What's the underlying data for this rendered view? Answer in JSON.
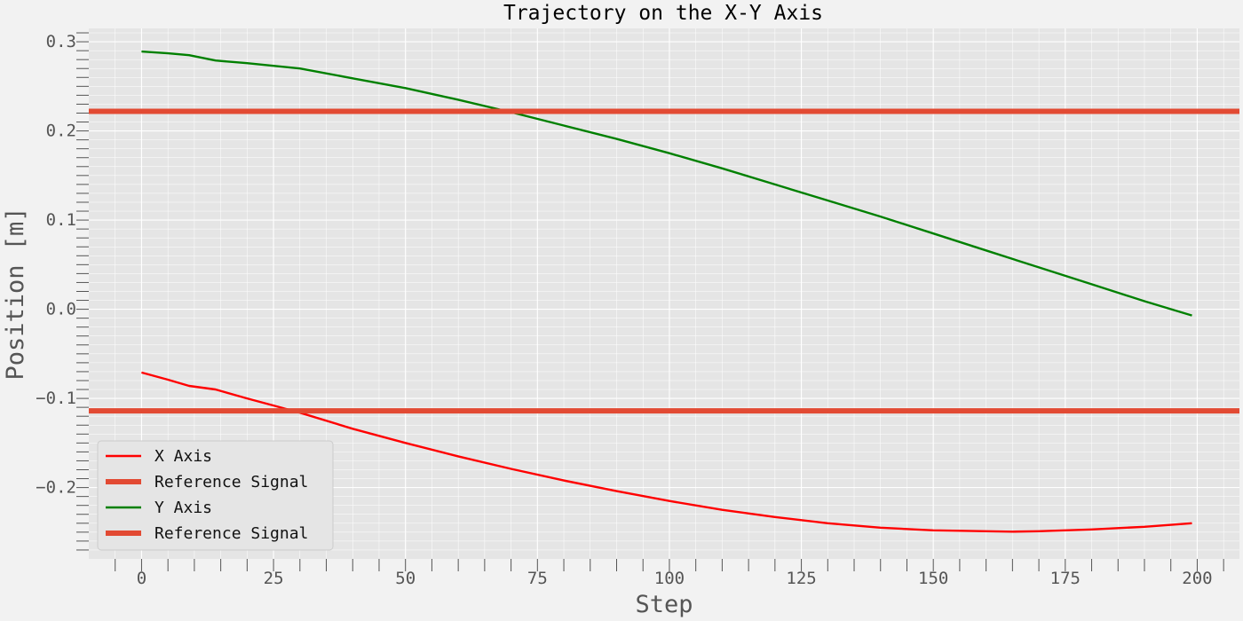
{
  "chart_data": {
    "type": "line",
    "title": "Trajectory on the X-Y Axis",
    "xlabel": "Step",
    "ylabel": "Position [m]",
    "xlim": [
      -10,
      208
    ],
    "ylim": [
      -0.28,
      0.315
    ],
    "xticks": [
      0,
      25,
      50,
      75,
      100,
      125,
      150,
      175,
      200
    ],
    "xtick_labels": [
      "0",
      "25",
      "50",
      "75",
      "100",
      "125",
      "150",
      "175",
      "200"
    ],
    "yticks": [
      0.3,
      0.2,
      0.1,
      0.0,
      -0.1,
      -0.2
    ],
    "ytick_labels": [
      "0.3",
      "0.2",
      "0.1",
      "0.0",
      "−0.1",
      "−0.2"
    ],
    "grid": true,
    "legend_position": "bottom-left",
    "series": [
      {
        "name": "X Axis",
        "color": "#ff0000",
        "x": [
          0,
          5,
          9,
          14,
          20,
          25,
          30,
          40,
          50,
          60,
          70,
          80,
          90,
          100,
          110,
          120,
          130,
          140,
          150,
          160,
          165,
          170,
          180,
          190,
          199
        ],
        "y": [
          -0.071,
          -0.079,
          -0.086,
          -0.09,
          -0.1,
          -0.108,
          -0.116,
          -0.134,
          -0.15,
          -0.165,
          -0.179,
          -0.192,
          -0.204,
          -0.215,
          -0.225,
          -0.233,
          -0.24,
          -0.245,
          -0.248,
          -0.249,
          -0.2495,
          -0.249,
          -0.247,
          -0.244,
          -0.24
        ]
      },
      {
        "name": "Reference Signal",
        "color": "#e24a33",
        "style": "horizontal",
        "y": -0.114
      },
      {
        "name": "Y Axis",
        "color": "#008000",
        "x": [
          0,
          5,
          9,
          14,
          20,
          30,
          40,
          50,
          60,
          70,
          80,
          90,
          100,
          110,
          120,
          130,
          140,
          150,
          160,
          170,
          180,
          190,
          199
        ],
        "y": [
          0.289,
          0.287,
          0.285,
          0.279,
          0.276,
          0.27,
          0.259,
          0.248,
          0.235,
          0.221,
          0.206,
          0.191,
          0.175,
          0.158,
          0.14,
          0.122,
          0.104,
          0.085,
          0.066,
          0.047,
          0.028,
          0.009,
          -0.007
        ]
      },
      {
        "name": "Reference Signal",
        "color": "#e24a33",
        "style": "horizontal",
        "y": 0.222
      }
    ]
  }
}
